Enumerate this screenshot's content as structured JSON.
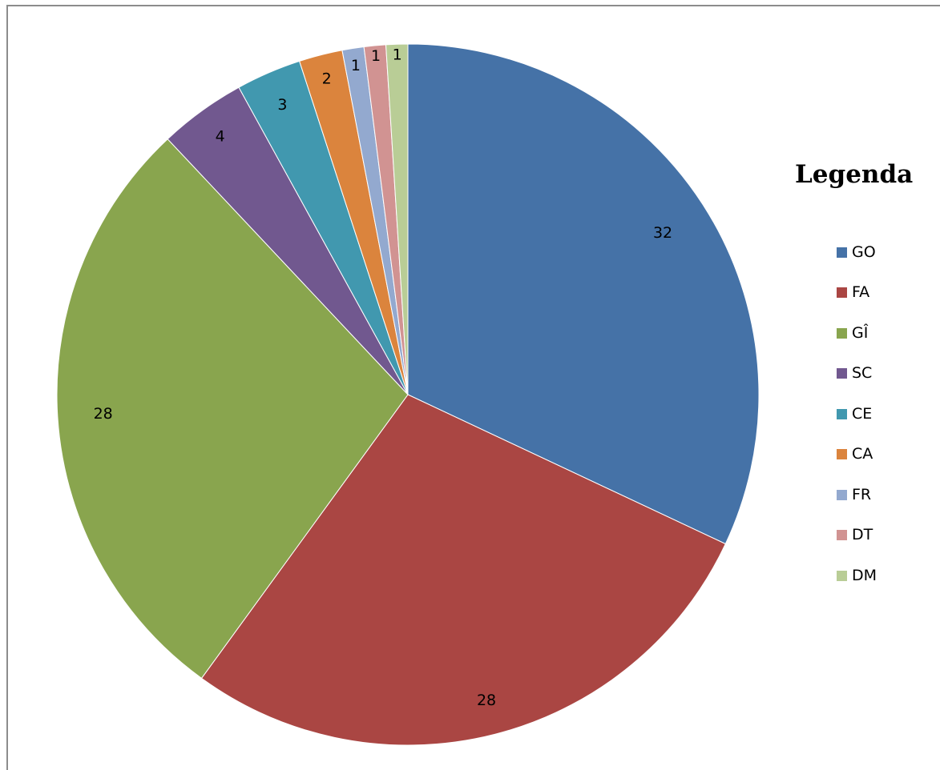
{
  "chart_data": {
    "type": "pie",
    "title": "",
    "legend_title": "Legenda",
    "legend_position": "right",
    "show_data_labels": true,
    "start_angle": "12 o'clock",
    "direction": "clockwise",
    "slices": [
      {
        "name": "GO",
        "value": 32,
        "label": "32",
        "color": "#4572a7"
      },
      {
        "name": "FA",
        "value": 28,
        "label": "28",
        "color": "#aa4643"
      },
      {
        "name": "GÎ",
        "value": 28,
        "label": "28",
        "color": "#89a54e"
      },
      {
        "name": "SC",
        "value": 4,
        "label": "4",
        "color": "#71588f"
      },
      {
        "name": "CE",
        "value": 3,
        "label": "3",
        "color": "#4198af"
      },
      {
        "name": "CA",
        "value": 2,
        "label": "2",
        "color": "#db843d"
      },
      {
        "name": "FR",
        "value": 1,
        "label": "1",
        "color": "#93a9cf"
      },
      {
        "name": "DT",
        "value": 1,
        "label": "1",
        "color": "#d19392"
      },
      {
        "name": "DM",
        "value": 1,
        "label": "1",
        "color": "#b9cd96"
      }
    ]
  }
}
